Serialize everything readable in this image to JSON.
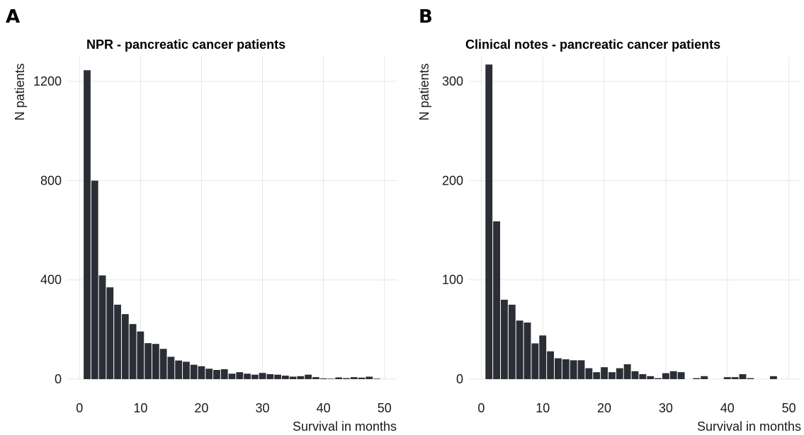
{
  "chart_data": [
    {
      "type": "bar",
      "panel_label": "A",
      "title": "NPR - pancreatic cancer patients",
      "xlabel": "Survival in months",
      "ylabel": "N patients",
      "xlim": [
        -2,
        52
      ],
      "ylim": [
        0,
        1300
      ],
      "xticks": [
        0,
        10,
        20,
        30,
        40,
        50
      ],
      "yticks": [
        0,
        400,
        800,
        1200
      ],
      "grid": true,
      "bin_width": 1.25,
      "x": [
        1.25,
        2.5,
        3.75,
        5,
        6.25,
        7.5,
        8.75,
        10,
        11.25,
        12.5,
        13.75,
        15,
        16.25,
        17.5,
        18.75,
        20,
        21.25,
        22.5,
        23.75,
        25,
        26.25,
        27.5,
        28.75,
        30,
        31.25,
        32.5,
        33.75,
        35,
        36.25,
        37.5,
        38.75,
        40,
        41.25,
        42.5,
        43.75,
        45,
        46.25,
        47.5,
        48.75
      ],
      "values": [
        1245,
        800,
        418,
        370,
        300,
        262,
        222,
        192,
        145,
        142,
        122,
        90,
        75,
        70,
        58,
        52,
        42,
        37,
        40,
        22,
        28,
        22,
        18,
        25,
        20,
        18,
        14,
        10,
        12,
        18,
        8,
        3,
        2,
        7,
        4,
        8,
        6,
        10,
        2
      ]
    },
    {
      "type": "bar",
      "panel_label": "B",
      "title": "Clinical notes - pancreatic cancer patients",
      "xlabel": "Survival in months",
      "ylabel": "N patients",
      "xlim": [
        -2,
        52
      ],
      "ylim": [
        0,
        325
      ],
      "xticks": [
        0,
        10,
        20,
        30,
        40,
        50
      ],
      "yticks": [
        0,
        100,
        200,
        300
      ],
      "grid": true,
      "bin_width": 1.25,
      "x": [
        1.25,
        2.5,
        3.75,
        5,
        6.25,
        7.5,
        8.75,
        10,
        11.25,
        12.5,
        13.75,
        15,
        16.25,
        17.5,
        18.75,
        20,
        21.25,
        22.5,
        23.75,
        25,
        26.25,
        27.5,
        28.75,
        30,
        31.25,
        32.5,
        33.75,
        35,
        36.25,
        37.5,
        38.75,
        40,
        41.25,
        42.5,
        43.75,
        45,
        46.25,
        47.5,
        48.75
      ],
      "values": [
        317,
        159,
        80,
        75,
        59,
        57,
        36,
        44,
        28,
        21,
        20,
        19,
        19,
        11,
        7,
        12,
        7,
        11,
        15,
        8,
        5,
        3,
        1,
        6,
        8,
        7,
        0,
        1,
        3,
        0,
        0,
        2,
        2,
        5,
        1,
        0,
        0,
        3,
        0
      ]
    }
  ]
}
